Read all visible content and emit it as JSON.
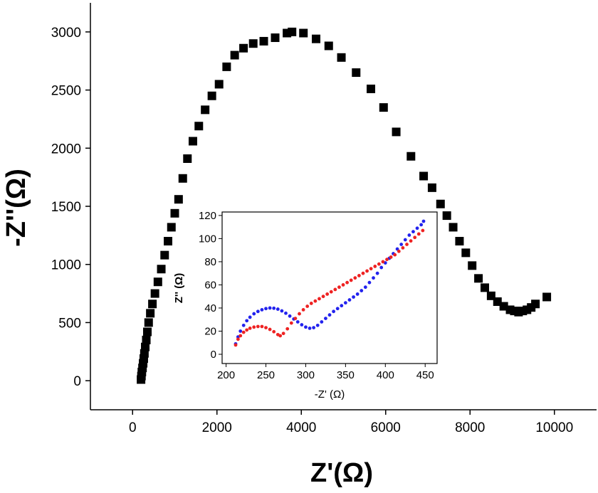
{
  "chart_data": [
    {
      "type": "scatter",
      "xlabel": "Z'(Ω)",
      "ylabel": "-Z''(Ω)",
      "xlim": [
        -1000,
        11000
      ],
      "ylim": [
        -250,
        3250
      ],
      "xticks": [
        0,
        2000,
        4000,
        6000,
        8000,
        10000
      ],
      "yticks": [
        0,
        500,
        1000,
        1500,
        2000,
        2500,
        3000
      ],
      "grid": false,
      "marker": "square",
      "colors": {
        "main": "#000000"
      },
      "series": [
        {
          "x": [
            200,
            210,
            220,
            235,
            250,
            265,
            280,
            300,
            325,
            350,
            380,
            420,
            470,
            530,
            600,
            680,
            760,
            840,
            920,
            1000,
            1090,
            1190,
            1300,
            1430,
            1570,
            1720,
            1880,
            2050,
            2230,
            2420,
            2630,
            2860,
            3110,
            3380,
            3660,
            3780,
            4050,
            4350,
            4650,
            4950,
            5300,
            5650,
            5950,
            6250,
            6600,
            6900,
            7100,
            7300,
            7450,
            7600,
            7750,
            7900,
            8050,
            8200,
            8350,
            8500,
            8650,
            8800,
            8950,
            9050,
            9150,
            9250,
            9350,
            9450,
            9550,
            9820
          ],
          "y": [
            10,
            40,
            75,
            110,
            150,
            190,
            235,
            290,
            350,
            420,
            500,
            580,
            660,
            750,
            850,
            960,
            1080,
            1200,
            1320,
            1440,
            1560,
            1740,
            1910,
            2060,
            2190,
            2330,
            2450,
            2550,
            2700,
            2800,
            2860,
            2900,
            2920,
            2950,
            2990,
            3000,
            2990,
            2940,
            2880,
            2780,
            2650,
            2510,
            2350,
            2140,
            1930,
            1760,
            1660,
            1520,
            1420,
            1320,
            1200,
            1100,
            990,
            880,
            800,
            730,
            680,
            640,
            610,
            600,
            590,
            600,
            610,
            630,
            660,
            720
          ]
        }
      ]
    },
    {
      "type": "scatter",
      "xlabel": "-Z' (Ω)",
      "ylabel": "Z'' (Ω)",
      "xlim": [
        195,
        465
      ],
      "ylim": [
        -8,
        123
      ],
      "xticks": [
        200,
        250,
        300,
        350,
        400,
        450
      ],
      "yticks": [
        0,
        20,
        40,
        60,
        80,
        100,
        120
      ],
      "grid": false,
      "colors": {
        "blue": "#2222ee",
        "red": "#ee2222"
      },
      "series": [
        {
          "color": "blue",
          "x": [
            212,
            215,
            218,
            222,
            226,
            230,
            235,
            240,
            245,
            250,
            255,
            260,
            265,
            270,
            275,
            280,
            285,
            290,
            295,
            300,
            305,
            310,
            315,
            320,
            325,
            330,
            335,
            340,
            345,
            350,
            355,
            360,
            365,
            370,
            375,
            380,
            385,
            390,
            395,
            400,
            405,
            410,
            415,
            420,
            425,
            430,
            435,
            440,
            445,
            448
          ],
          "y": [
            9,
            15,
            20,
            25,
            29,
            32,
            35,
            37,
            38.5,
            39.5,
            40,
            39.8,
            39,
            37.5,
            35.5,
            33,
            30.5,
            28,
            25.5,
            23.5,
            22.5,
            23,
            25,
            28,
            31,
            34,
            37,
            39.5,
            42,
            44.5,
            47,
            49.5,
            52,
            55,
            58,
            62,
            66,
            70,
            75,
            79,
            83,
            87,
            91,
            95,
            99,
            103,
            106,
            109,
            112,
            115
          ]
        },
        {
          "color": "red",
          "x": [
            212,
            215,
            218,
            222,
            226,
            230,
            235,
            240,
            245,
            250,
            255,
            260,
            265,
            268,
            272,
            277,
            282,
            287,
            292,
            297,
            302,
            307,
            312,
            317,
            322,
            327,
            332,
            337,
            342,
            347,
            352,
            357,
            362,
            367,
            372,
            377,
            382,
            387,
            392,
            397,
            402,
            407,
            412,
            417,
            422,
            427,
            432,
            437,
            442,
            447
          ],
          "y": [
            8,
            13,
            16,
            19,
            21,
            22.5,
            23.5,
            24,
            24,
            23,
            21.5,
            19.5,
            17,
            16,
            18,
            22,
            27,
            31,
            35,
            38.5,
            41.5,
            44,
            46,
            48,
            50,
            52,
            54,
            56,
            58,
            60,
            62,
            64,
            66,
            68,
            70,
            72,
            74,
            76,
            78,
            80,
            82,
            84,
            86,
            89,
            92,
            95,
            98,
            101,
            104,
            107
          ]
        }
      ]
    }
  ]
}
